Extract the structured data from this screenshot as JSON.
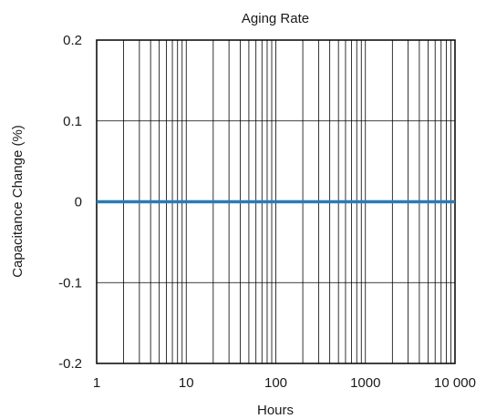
{
  "chart_data": {
    "type": "line",
    "title": "Aging Rate",
    "xlabel": "Hours",
    "ylabel": "Capacitance Change (%)",
    "x_scale": "log",
    "xlim": [
      1,
      10000
    ],
    "ylim": [
      -0.2,
      0.2
    ],
    "x_ticks": [
      {
        "value": 1,
        "label": "1"
      },
      {
        "value": 10,
        "label": "10"
      },
      {
        "value": 100,
        "label": "100"
      },
      {
        "value": 1000,
        "label": "1000"
      },
      {
        "value": 10000,
        "label": "10 000"
      }
    ],
    "y_ticks": [
      {
        "value": 0.2,
        "label": "0.2"
      },
      {
        "value": 0.1,
        "label": "0.1"
      },
      {
        "value": 0,
        "label": "0"
      },
      {
        "value": -0.1,
        "label": "-0.1"
      },
      {
        "value": -0.2,
        "label": "-0.2"
      }
    ],
    "grid": true,
    "series": [
      {
        "color": "#2a7ab8",
        "x": [
          1,
          10,
          100,
          1000,
          10000
        ],
        "y": [
          0,
          0,
          0,
          0,
          0
        ]
      }
    ]
  }
}
